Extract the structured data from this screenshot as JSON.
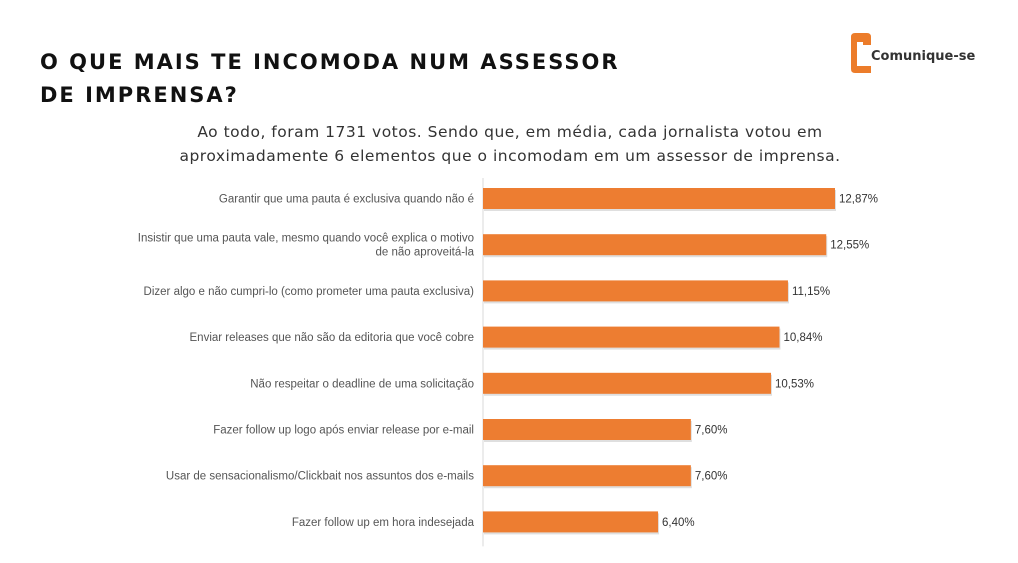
{
  "title": {
    "line1": "O QUE MAIS TE INCOMODA NUM ASSESSOR",
    "line2": "DE IMPRENSA?"
  },
  "logo": {
    "text": "Comunique-se",
    "icon": "comunique-se-logo-icon",
    "color": "#EC7C2A"
  },
  "subtitle": {
    "line1": "Ao todo, foram 1731 votos. Sendo que, em média, cada jornalista votou em",
    "line2": "aproximadamente 6 elementos que o incomodam em um assessor de imprensa."
  },
  "colors": {
    "bar": "#ED7D31",
    "axis": "#D9D9D9"
  },
  "chart_data": {
    "type": "bar",
    "orientation": "horizontal",
    "categories": [
      [
        "Garantir que uma pauta é exclusiva quando não é"
      ],
      [
        "Insistir que uma pauta vale, mesmo quando você explica o motivo",
        "de não aproveitá-la"
      ],
      [
        "Dizer algo e não cumpri-lo (como prometer uma pauta exclusiva)"
      ],
      [
        "Enviar releases que não são da editoria que você cobre"
      ],
      [
        "Não respeitar o deadline de uma solicitação"
      ],
      [
        "Fazer follow up logo após enviar release por e-mail"
      ],
      [
        "Usar de sensacionalismo/Clickbait nos assuntos dos e-mails"
      ],
      [
        "Fazer follow up em hora indesejada"
      ]
    ],
    "values": [
      12.87,
      12.55,
      11.15,
      10.84,
      10.53,
      7.6,
      7.6,
      6.4
    ],
    "value_labels": [
      "12,87%",
      "12,55%",
      "11,15%",
      "10,84%",
      "10,53%",
      "7,60%",
      "7,60%",
      "6,40%"
    ],
    "xlim": [
      0,
      12.87
    ],
    "grid": false,
    "legend": "none"
  }
}
